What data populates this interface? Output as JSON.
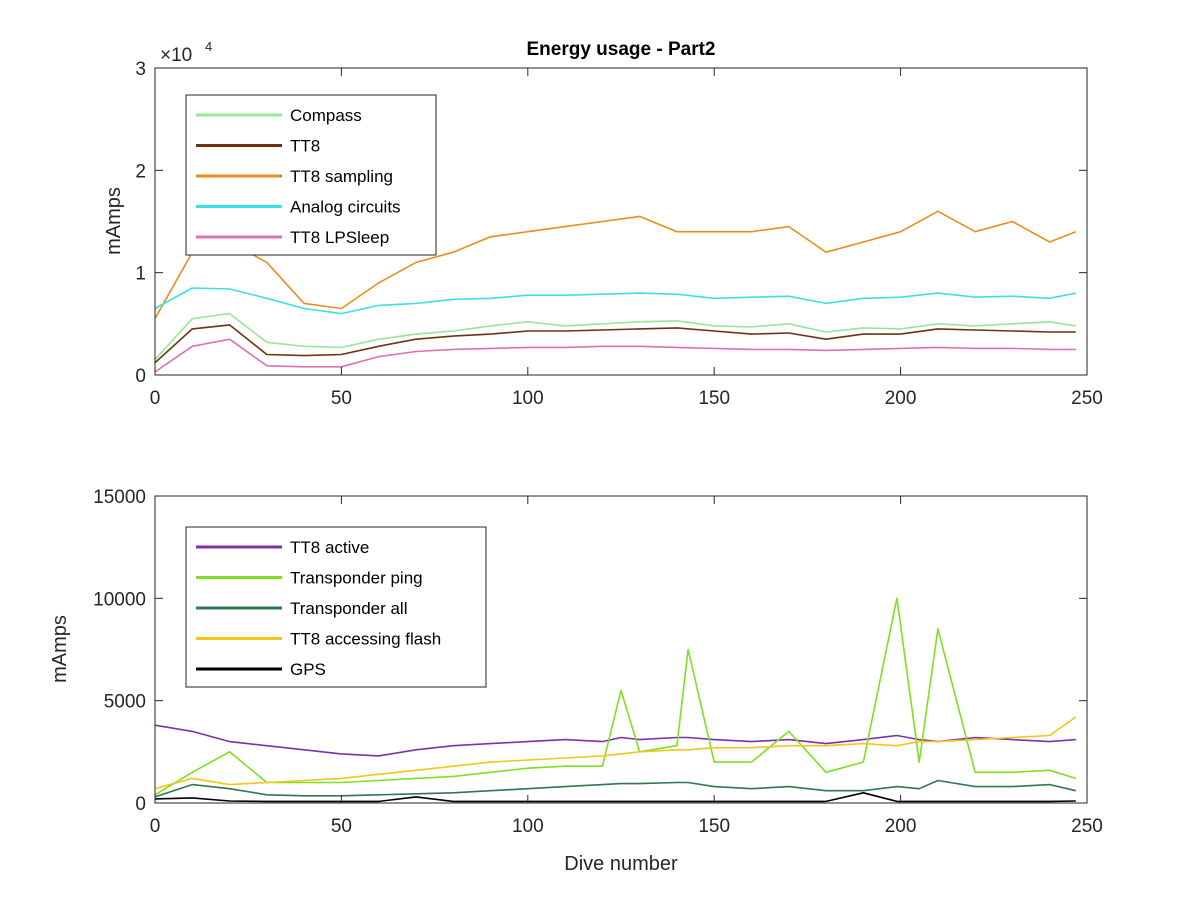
{
  "chart_data": [
    {
      "type": "line",
      "title": "Energy usage - Part2",
      "xlabel": "",
      "ylabel": "mAmps",
      "xlim": [
        0,
        250
      ],
      "ylim": [
        0,
        30000
      ],
      "x_ticks": [
        "0",
        "50",
        "100",
        "150",
        "200",
        "250"
      ],
      "y_ticks": [
        "0",
        "1",
        "2",
        "3"
      ],
      "y_exponent": {
        "base": "×10",
        "power": "4"
      },
      "legend_position": "top-left",
      "grid": false,
      "x": [
        0,
        10,
        20,
        30,
        40,
        50,
        60,
        70,
        80,
        90,
        100,
        110,
        120,
        130,
        140,
        150,
        160,
        170,
        180,
        190,
        200,
        210,
        220,
        230,
        240,
        247
      ],
      "series": [
        {
          "name": "Compass",
          "color": "#98e698",
          "values": [
            1500,
            5500,
            6000,
            3200,
            2800,
            2700,
            3500,
            4000,
            4300,
            4800,
            5200,
            4800,
            5000,
            5200,
            5300,
            4800,
            4700,
            5000,
            4200,
            4600,
            4500,
            5000,
            4800,
            5000,
            5200,
            4800
          ]
        },
        {
          "name": "TT8",
          "color": "#6b3410",
          "values": [
            1200,
            4500,
            4900,
            2000,
            1900,
            2000,
            2800,
            3500,
            3800,
            4000,
            4300,
            4300,
            4400,
            4500,
            4600,
            4300,
            4000,
            4100,
            3500,
            4000,
            4000,
            4500,
            4400,
            4300,
            4200,
            4200
          ]
        },
        {
          "name": "TT8 sampling",
          "color": "#e88e1c",
          "values": [
            5500,
            12000,
            13000,
            11000,
            7000,
            6500,
            9000,
            11000,
            12000,
            13500,
            14000,
            14500,
            15000,
            15500,
            14000,
            14000,
            14000,
            14500,
            12000,
            13000,
            14000,
            16000,
            14000,
            15000,
            13000,
            14000
          ]
        },
        {
          "name": "Analog circuits",
          "color": "#3ae0e6",
          "values": [
            6500,
            8500,
            8400,
            7500,
            6500,
            6000,
            6800,
            7000,
            7400,
            7500,
            7800,
            7800,
            7900,
            8000,
            7900,
            7500,
            7600,
            7700,
            7000,
            7500,
            7600,
            8000,
            7600,
            7700,
            7500,
            8000
          ]
        },
        {
          "name": "TT8 LPSleep",
          "color": "#e070b4",
          "values": [
            300,
            2800,
            3500,
            900,
            800,
            800,
            1800,
            2300,
            2500,
            2600,
            2700,
            2700,
            2800,
            2800,
            2700,
            2600,
            2500,
            2500,
            2400,
            2500,
            2600,
            2700,
            2600,
            2600,
            2500,
            2500
          ]
        }
      ]
    },
    {
      "type": "line",
      "title": "",
      "xlabel": "Dive number",
      "ylabel": "mAmps",
      "xlim": [
        0,
        250
      ],
      "ylim": [
        0,
        15000
      ],
      "x_ticks": [
        "0",
        "50",
        "100",
        "150",
        "200",
        "250"
      ],
      "y_ticks": [
        "0",
        "5000",
        "10000",
        "15000"
      ],
      "legend_position": "top-left",
      "grid": false,
      "x": [
        0,
        10,
        20,
        30,
        40,
        50,
        60,
        70,
        80,
        90,
        100,
        110,
        120,
        125,
        130,
        140,
        143,
        150,
        160,
        170,
        180,
        190,
        199,
        205,
        210,
        220,
        230,
        240,
        247
      ],
      "series": [
        {
          "name": "TT8 active",
          "color": "#7e30ac",
          "values": [
            3800,
            3500,
            3000,
            2800,
            2600,
            2400,
            2300,
            2600,
            2800,
            2900,
            3000,
            3100,
            3000,
            3200,
            3100,
            3200,
            3200,
            3100,
            3000,
            3100,
            2900,
            3100,
            3300,
            3100,
            3000,
            3200,
            3100,
            3000,
            3100
          ]
        },
        {
          "name": "Transponder ping",
          "color": "#7ee020",
          "values": [
            400,
            1500,
            2500,
            1000,
            1000,
            1000,
            1100,
            1200,
            1300,
            1500,
            1700,
            1800,
            1800,
            5500,
            2500,
            2800,
            7500,
            2000,
            2000,
            3500,
            1500,
            2000,
            10000,
            2000,
            8500,
            1500,
            1500,
            1600,
            1200
          ]
        },
        {
          "name": "Transponder all",
          "color": "#2c7a4a",
          "values": [
            300,
            900,
            700,
            400,
            350,
            350,
            400,
            450,
            500,
            600,
            700,
            800,
            900,
            950,
            950,
            1000,
            1000,
            800,
            700,
            800,
            600,
            600,
            800,
            700,
            1100,
            800,
            800,
            900,
            600
          ]
        },
        {
          "name": "TT8 accessing flash",
          "color": "#f5c518",
          "values": [
            700,
            1200,
            900,
            1000,
            1100,
            1200,
            1400,
            1600,
            1800,
            2000,
            2100,
            2200,
            2300,
            2400,
            2500,
            2600,
            2600,
            2700,
            2700,
            2800,
            2800,
            2900,
            2800,
            3000,
            3000,
            3100,
            3200,
            3300,
            4200
          ]
        },
        {
          "name": "GPS",
          "color": "#000000",
          "values": [
            200,
            250,
            100,
            80,
            80,
            80,
            80,
            300,
            80,
            80,
            80,
            80,
            80,
            80,
            80,
            80,
            80,
            80,
            80,
            80,
            80,
            500,
            80,
            80,
            80,
            80,
            80,
            80,
            100
          ]
        }
      ]
    }
  ]
}
